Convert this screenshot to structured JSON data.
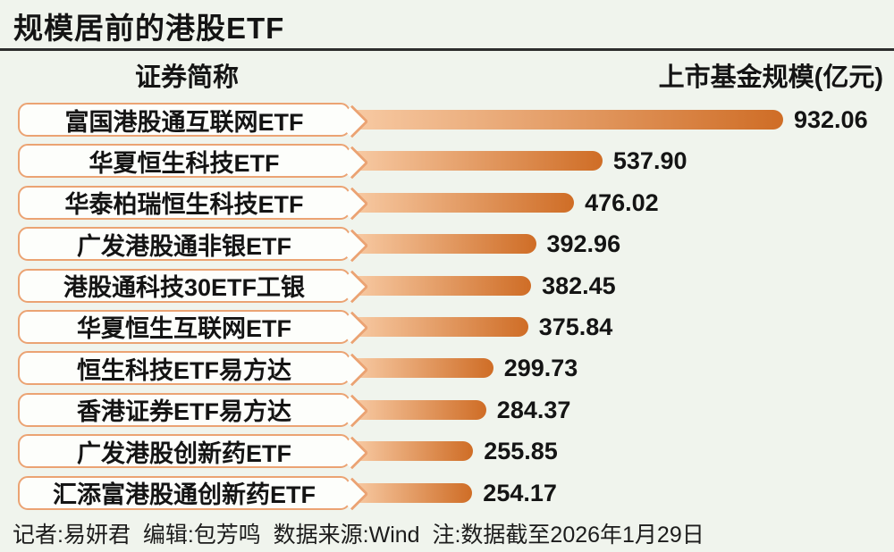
{
  "title": "规模居前的港股ETF",
  "header": {
    "name_column": "证券简称",
    "value_column": "上市基金规模(亿元)"
  },
  "footer": {
    "text": "记者:易妍君  编辑:包芳鸣  数据来源:Wind  注:数据截至2026年1月29日"
  },
  "colors": {
    "background": "#f0f4ed",
    "box_background": "#fdfefb",
    "box_border": "#eba373",
    "bar_gradient_start": "#f7c9a2",
    "bar_gradient_end": "#cf6d26",
    "divider": "#2d2d2d",
    "text": "#141414"
  },
  "chart_data": {
    "type": "bar",
    "orientation": "horizontal",
    "title": "规模居前的港股ETF",
    "category_axis_label": "证券简称",
    "value_axis_label": "上市基金规模(亿元)",
    "categories": [
      "富国港股通互联网ETF",
      "华夏恒生科技ETF",
      "华泰柏瑞恒生科技ETF",
      "广发港股通非银ETF",
      "港股通科技30ETF工银",
      "华夏恒生互联网ETF",
      "恒生科技ETF易方达",
      "香港证券ETF易方达",
      "广发港股创新药ETF",
      "汇添富港股通创新药ETF"
    ],
    "values": [
      932.06,
      537.9,
      476.02,
      392.96,
      382.45,
      375.84,
      299.73,
      284.37,
      255.85,
      254.17
    ],
    "value_labels": [
      "932.06",
      "537.90",
      "476.02",
      "392.96",
      "382.45",
      "375.84",
      "299.73",
      "284.37",
      "255.85",
      "254.17"
    ],
    "xlim": [
      0,
      960
    ],
    "grid": "off",
    "legend": "none",
    "bar_color_gradient": [
      "#f7c9a2",
      "#cf6d26"
    ],
    "sorted": "descending"
  }
}
